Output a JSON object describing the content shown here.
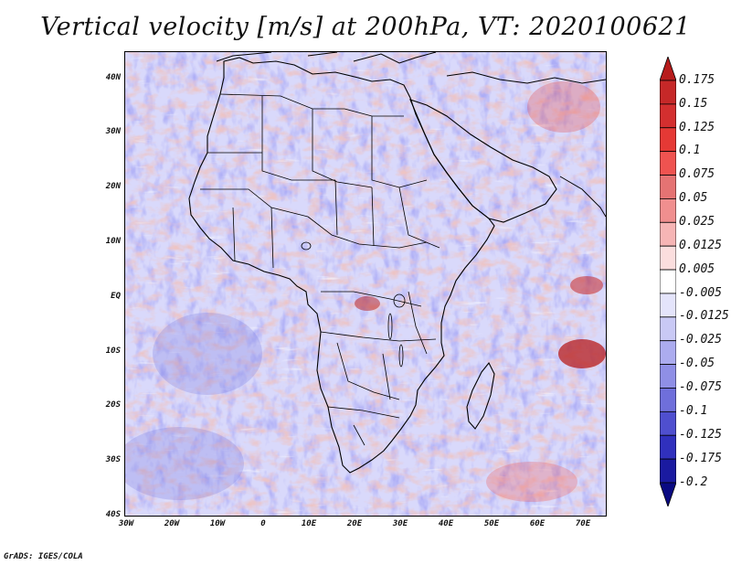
{
  "title": "Vertical velocity [m/s] at 200hPa, VT: 2020100621",
  "footer": "GrADS: IGES/COLA",
  "map": {
    "latitude_labels": [
      "40N",
      "30N",
      "20N",
      "10N",
      "EQ",
      "10S",
      "20S",
      "30S",
      "40S"
    ],
    "longitude_labels": [
      "30W",
      "20W",
      "10W",
      "0",
      "10E",
      "20E",
      "30E",
      "40E",
      "50E",
      "60E",
      "70E"
    ],
    "lon_range": [
      -30,
      75
    ],
    "lat_range": [
      -40,
      45
    ]
  },
  "colorbar": {
    "levels": [
      "0.175",
      "0.15",
      "0.125",
      "0.1",
      "0.075",
      "0.05",
      "0.025",
      "0.0125",
      "0.005",
      "-0.005",
      "-0.0125",
      "-0.025",
      "-0.05",
      "-0.075",
      "-0.1",
      "-0.125",
      "-0.175",
      "-0.2"
    ],
    "colors": [
      "#b71c1c",
      "#c62828",
      "#d32f2f",
      "#e53935",
      "#ef5350",
      "#e57373",
      "#f08f8f",
      "#f6b5b5",
      "#fbdede",
      "#ffffff",
      "#e4e4fb",
      "#c9c9f5",
      "#acacef",
      "#8f8fe6",
      "#6f6fdb",
      "#4f4fcf",
      "#3030bd",
      "#1a1aa0",
      "#0a0a82"
    ]
  }
}
